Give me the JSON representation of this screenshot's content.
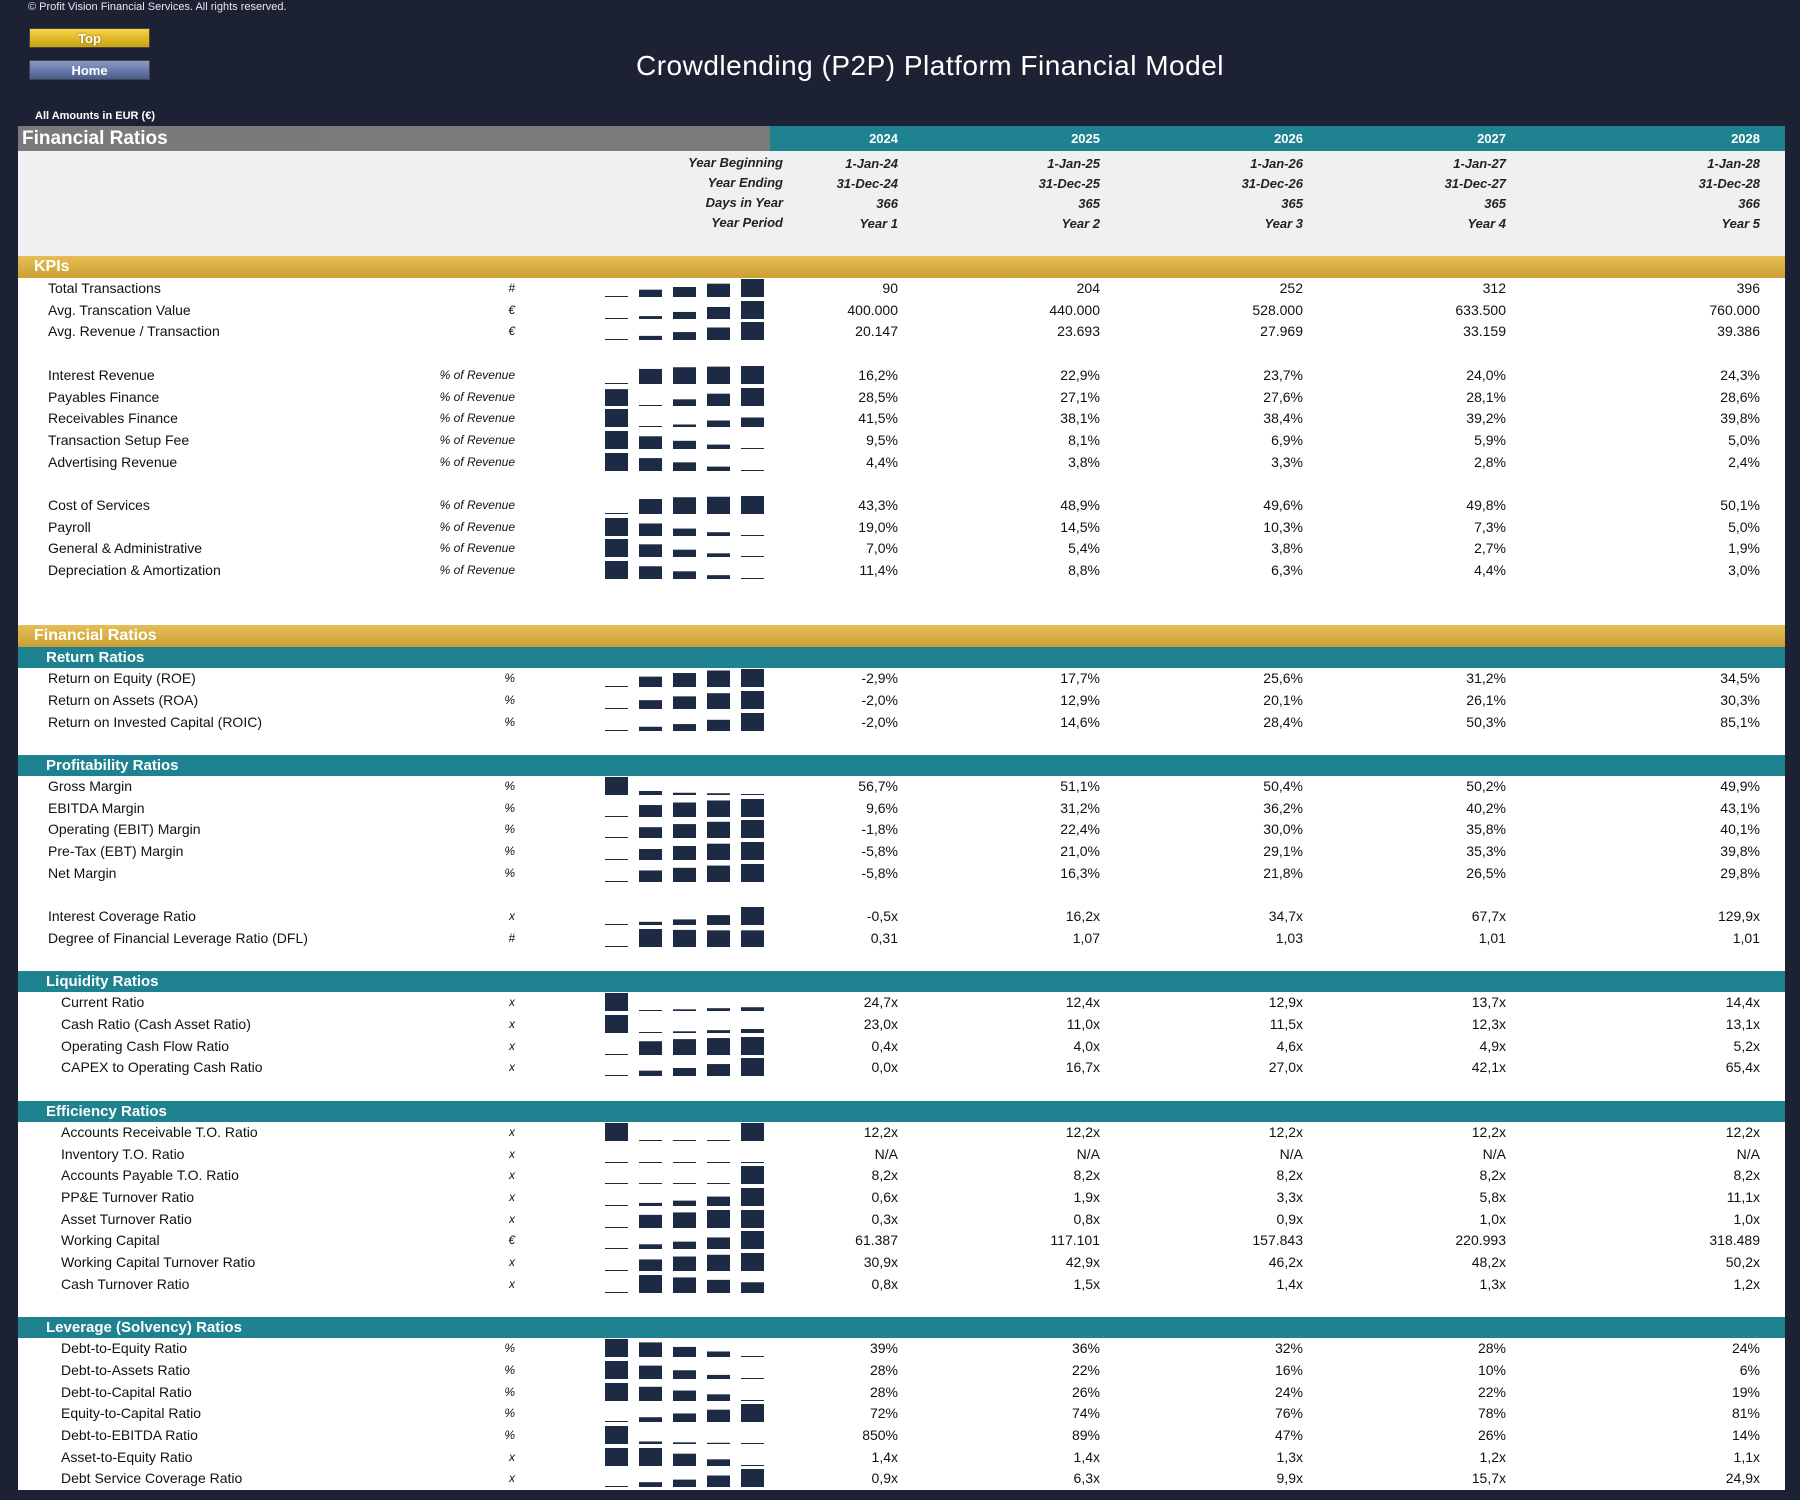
{
  "copyright": "© Profit Vision Financial Services. All rights reserved.",
  "nav": {
    "top_label": "Top",
    "home_label": "Home"
  },
  "title": "Crowdlending (P2P) Platform Financial Model",
  "amounts_note": "All Amounts in  EUR (€)",
  "sheet_title": "Financial Ratios",
  "years": [
    "2024",
    "2025",
    "2026",
    "2027",
    "2028"
  ],
  "date_header": {
    "labels": {
      "year_beginning": "Year Beginning",
      "year_ending": "Year Ending",
      "days_in_year": "Days in Year",
      "year_period": "Year Period"
    },
    "year_beginning": [
      "1-Jan-24",
      "1-Jan-25",
      "1-Jan-26",
      "1-Jan-27",
      "1-Jan-28"
    ],
    "year_ending": [
      "31-Dec-24",
      "31-Dec-25",
      "31-Dec-26",
      "31-Dec-27",
      "31-Dec-28"
    ],
    "days_in_year": [
      "366",
      "365",
      "365",
      "365",
      "366"
    ],
    "year_period": [
      "Year 1",
      "Year 2",
      "Year 3",
      "Year 4",
      "Year 5"
    ]
  },
  "colors": {
    "navy": "#1c2a44",
    "teal": "#1f8291",
    "gold": "#d4aa3c",
    "gray": "#7a7a7a"
  },
  "sections": [
    {
      "type": "gold",
      "title": "KPIs",
      "rows": [
        {
          "label": "Total Transactions",
          "unit": "#",
          "values": [
            "90",
            "204",
            "252",
            "312",
            "396"
          ],
          "spark": [
            90,
            204,
            252,
            312,
            396
          ]
        },
        {
          "label": "Avg. Transcation Value",
          "unit": "€",
          "values": [
            "400.000",
            "440.000",
            "528.000",
            "633.500",
            "760.000"
          ],
          "spark": [
            400,
            440,
            528,
            633.5,
            760
          ]
        },
        {
          "label": "Avg. Revenue / Transaction",
          "unit": "€",
          "values": [
            "20.147",
            "23.693",
            "27.969",
            "33.159",
            "39.386"
          ],
          "spark": [
            20.147,
            23.693,
            27.969,
            33.159,
            39.386
          ]
        },
        {
          "gap": true
        },
        {
          "label": "Interest Revenue",
          "unit": "% of Revenue",
          "values": [
            "16,2%",
            "22,9%",
            "23,7%",
            "24,0%",
            "24,3%"
          ],
          "spark": [
            16.2,
            22.9,
            23.7,
            24.0,
            24.3
          ]
        },
        {
          "label": "Payables Finance",
          "unit": "% of Revenue",
          "values": [
            "28,5%",
            "27,1%",
            "27,6%",
            "28,1%",
            "28,6%"
          ],
          "spark": [
            28.5,
            27.1,
            27.6,
            28.1,
            28.6
          ]
        },
        {
          "label": "Receivables Finance",
          "unit": "% of Revenue",
          "values": [
            "41,5%",
            "38,1%",
            "38,4%",
            "39,2%",
            "39,8%"
          ],
          "spark": [
            41.5,
            38.1,
            38.4,
            39.2,
            39.8
          ]
        },
        {
          "label": "Transaction Setup Fee",
          "unit": "% of Revenue",
          "values": [
            "9,5%",
            "8,1%",
            "6,9%",
            "5,9%",
            "5,0%"
          ],
          "spark": [
            9.5,
            8.1,
            6.9,
            5.9,
            5.0
          ]
        },
        {
          "label": "Advertising Revenue",
          "unit": "% of Revenue",
          "values": [
            "4,4%",
            "3,8%",
            "3,3%",
            "2,8%",
            "2,4%"
          ],
          "spark": [
            4.4,
            3.8,
            3.3,
            2.8,
            2.4
          ]
        },
        {
          "gap": true
        },
        {
          "label": "Cost of Services",
          "unit": "% of Revenue",
          "values": [
            "43,3%",
            "48,9%",
            "49,6%",
            "49,8%",
            "50,1%"
          ],
          "spark": [
            43.3,
            48.9,
            49.6,
            49.8,
            50.1
          ]
        },
        {
          "label": "Payroll",
          "unit": "% of Revenue",
          "values": [
            "19,0%",
            "14,5%",
            "10,3%",
            "7,3%",
            "5,0%"
          ],
          "spark": [
            19.0,
            14.5,
            10.3,
            7.3,
            5.0
          ]
        },
        {
          "label": "General & Administrative",
          "unit": "% of Revenue",
          "values": [
            "7,0%",
            "5,4%",
            "3,8%",
            "2,7%",
            "1,9%"
          ],
          "spark": [
            7.0,
            5.4,
            3.8,
            2.7,
            1.9
          ]
        },
        {
          "label": "Depreciation & Amortization",
          "unit": "% of Revenue",
          "values": [
            "11,4%",
            "8,8%",
            "6,3%",
            "4,4%",
            "3,0%"
          ],
          "spark": [
            11.4,
            8.8,
            6.3,
            4.4,
            3.0
          ]
        },
        {
          "gap": true
        },
        {
          "gap": true
        }
      ]
    },
    {
      "type": "gold",
      "title": "Financial Ratios",
      "rows": []
    },
    {
      "type": "teal",
      "title": "Return Ratios",
      "rows": [
        {
          "label": "Return on Equity (ROE)",
          "unit": "%",
          "values": [
            "-2,9%",
            "17,7%",
            "25,6%",
            "31,2%",
            "34,5%"
          ],
          "spark": [
            -2.9,
            17.7,
            25.6,
            31.2,
            34.5
          ]
        },
        {
          "label": "Return on Assets (ROA)",
          "unit": "%",
          "values": [
            "-2,0%",
            "12,9%",
            "20,1%",
            "26,1%",
            "30,3%"
          ],
          "spark": [
            -2.0,
            12.9,
            20.1,
            26.1,
            30.3
          ]
        },
        {
          "label": "Return on Invested Capital (ROIC)",
          "unit": "%",
          "values": [
            "-2,0%",
            "14,6%",
            "28,4%",
            "50,3%",
            "85,1%"
          ],
          "spark": [
            -2.0,
            14.6,
            28.4,
            50.3,
            85.1
          ]
        },
        {
          "gap": true
        }
      ]
    },
    {
      "type": "teal",
      "title": "Profitability Ratios",
      "rows": [
        {
          "label": "Gross Margin",
          "unit": "%",
          "values": [
            "56,7%",
            "51,1%",
            "50,4%",
            "50,2%",
            "49,9%"
          ],
          "spark": [
            56.7,
            51.1,
            50.4,
            50.2,
            49.9
          ]
        },
        {
          "label": "EBITDA Margin",
          "unit": "%",
          "values": [
            "9,6%",
            "31,2%",
            "36,2%",
            "40,2%",
            "43,1%"
          ],
          "spark": [
            9.6,
            31.2,
            36.2,
            40.2,
            43.1
          ]
        },
        {
          "label": "Operating (EBIT) Margin",
          "unit": "%",
          "values": [
            "-1,8%",
            "22,4%",
            "30,0%",
            "35,8%",
            "40,1%"
          ],
          "spark": [
            -1.8,
            22.4,
            30.0,
            35.8,
            40.1
          ]
        },
        {
          "label": "Pre-Tax (EBT) Margin",
          "unit": "%",
          "values": [
            "-5,8%",
            "21,0%",
            "29,1%",
            "35,3%",
            "39,8%"
          ],
          "spark": [
            -5.8,
            21.0,
            29.1,
            35.3,
            39.8
          ]
        },
        {
          "label": "Net Margin",
          "unit": "%",
          "values": [
            "-5,8%",
            "16,3%",
            "21,8%",
            "26,5%",
            "29,8%"
          ],
          "spark": [
            -5.8,
            16.3,
            21.8,
            26.5,
            29.8
          ]
        },
        {
          "gap": true
        },
        {
          "label": "Interest Coverage Ratio",
          "unit": "x",
          "values": [
            "-0,5x",
            "16,2x",
            "34,7x",
            "67,7x",
            "129,9x"
          ],
          "spark": [
            -0.5,
            16.2,
            34.7,
            67.7,
            129.9
          ]
        },
        {
          "label": "Degree of Financial Leverage Ratio (DFL)",
          "unit": "#",
          "values": [
            "0,31",
            "1,07",
            "1,03",
            "1,01",
            "1,01"
          ],
          "spark": [
            0.31,
            1.07,
            1.03,
            1.01,
            1.01
          ]
        },
        {
          "gap": true
        }
      ]
    },
    {
      "type": "teal",
      "title": "Liquidity Ratios",
      "rows": [
        {
          "label": "Current Ratio",
          "unit": "x",
          "indent": true,
          "values": [
            "24,7x",
            "12,4x",
            "12,9x",
            "13,7x",
            "14,4x"
          ],
          "spark": [
            24.7,
            12.4,
            12.9,
            13.7,
            14.4
          ]
        },
        {
          "label": "Cash Ratio (Cash Asset Ratio)",
          "unit": "x",
          "indent": true,
          "values": [
            "23,0x",
            "11,0x",
            "11,5x",
            "12,3x",
            "13,1x"
          ],
          "spark": [
            23.0,
            11.0,
            11.5,
            12.3,
            13.1
          ]
        },
        {
          "label": "Operating Cash Flow Ratio",
          "unit": "x",
          "indent": true,
          "values": [
            "0,4x",
            "4,0x",
            "4,6x",
            "4,9x",
            "5,2x"
          ],
          "spark": [
            0.4,
            4.0,
            4.6,
            4.9,
            5.2
          ]
        },
        {
          "label": "CAPEX to Operating Cash Ratio",
          "unit": "x",
          "indent": true,
          "values": [
            "0,0x",
            "16,7x",
            "27,0x",
            "42,1x",
            "65,4x"
          ],
          "spark": [
            0.0,
            16.7,
            27.0,
            42.1,
            65.4
          ]
        },
        {
          "gap": true
        }
      ]
    },
    {
      "type": "teal",
      "title": "Efficiency Ratios",
      "rows": [
        {
          "label": "Accounts Receivable T.O. Ratio",
          "unit": "x",
          "indent": true,
          "values": [
            "12,2x",
            "12,2x",
            "12,2x",
            "12,2x",
            "12,2x"
          ],
          "spark": [
            12.25,
            12.2,
            12.2,
            12.2,
            12.25
          ]
        },
        {
          "label": "Inventory T.O. Ratio",
          "unit": "x",
          "indent": true,
          "values": [
            "N/A",
            "N/A",
            "N/A",
            "N/A",
            "N/A"
          ],
          "spark": [
            0,
            0,
            0,
            0,
            0
          ]
        },
        {
          "label": "Accounts Payable T.O. Ratio",
          "unit": "x",
          "indent": true,
          "values": [
            "8,2x",
            "8,2x",
            "8,2x",
            "8,2x",
            "8,2x"
          ],
          "spark": [
            8.2,
            8.2,
            8.2,
            8.2,
            8.25
          ]
        },
        {
          "label": "PP&E Turnover Ratio",
          "unit": "x",
          "indent": true,
          "values": [
            "0,6x",
            "1,9x",
            "3,3x",
            "5,8x",
            "11,1x"
          ],
          "spark": [
            0.6,
            1.9,
            3.3,
            5.8,
            11.1
          ]
        },
        {
          "label": "Asset Turnover Ratio",
          "unit": "x",
          "indent": true,
          "values": [
            "0,3x",
            "0,8x",
            "0,9x",
            "1,0x",
            "1,0x"
          ],
          "spark": [
            0.3,
            0.8,
            0.9,
            1.0,
            1.0
          ]
        },
        {
          "label": "Working Capital",
          "unit": "€",
          "indent": true,
          "values": [
            "61.387",
            "117.101",
            "157.843",
            "220.993",
            "318.489"
          ],
          "spark": [
            61.387,
            117.101,
            157.843,
            220.993,
            318.489
          ]
        },
        {
          "label": "Working Capital Turnover Ratio",
          "unit": "x",
          "indent": true,
          "values": [
            "30,9x",
            "42,9x",
            "46,2x",
            "48,2x",
            "50,2x"
          ],
          "spark": [
            30.9,
            42.9,
            46.2,
            48.2,
            50.2
          ]
        },
        {
          "label": "Cash Turnover Ratio",
          "unit": "x",
          "indent": true,
          "values": [
            "0,8x",
            "1,5x",
            "1,4x",
            "1,3x",
            "1,2x"
          ],
          "spark": [
            0.8,
            1.5,
            1.4,
            1.3,
            1.2
          ]
        },
        {
          "gap": true
        }
      ]
    },
    {
      "type": "teal",
      "title": "Leverage (Solvency) Ratios",
      "rows": [
        {
          "label": "Debt-to-Equity Ratio",
          "unit": "%",
          "indent": true,
          "values": [
            "39%",
            "36%",
            "32%",
            "28%",
            "24%"
          ],
          "spark": [
            39,
            36,
            32,
            28,
            24
          ]
        },
        {
          "label": "Debt-to-Assets Ratio",
          "unit": "%",
          "indent": true,
          "values": [
            "28%",
            "22%",
            "16%",
            "10%",
            "6%"
          ],
          "spark": [
            28,
            22,
            16,
            10,
            6
          ]
        },
        {
          "label": "Debt-to-Capital Ratio",
          "unit": "%",
          "indent": true,
          "values": [
            "28%",
            "26%",
            "24%",
            "22%",
            "19%"
          ],
          "spark": [
            28,
            26,
            24,
            22,
            19
          ]
        },
        {
          "label": "Equity-to-Capital Ratio",
          "unit": "%",
          "indent": true,
          "values": [
            "72%",
            "74%",
            "76%",
            "78%",
            "81%"
          ],
          "spark": [
            72,
            74,
            76,
            78,
            81
          ]
        },
        {
          "label": "Debt-to-EBITDA Ratio",
          "unit": "%",
          "indent": true,
          "values": [
            "850%",
            "89%",
            "47%",
            "26%",
            "14%"
          ],
          "spark": [
            850,
            89,
            47,
            26,
            14
          ]
        },
        {
          "label": "Asset-to-Equity Ratio",
          "unit": "x",
          "indent": true,
          "values": [
            "1,4x",
            "1,4x",
            "1,3x",
            "1,2x",
            "1,1x"
          ],
          "spark": [
            1.4,
            1.4,
            1.3,
            1.2,
            1.1
          ]
        },
        {
          "label": "Debt Service Coverage Ratio",
          "unit": "x",
          "indent": true,
          "values": [
            "0,9x",
            "6,3x",
            "9,9x",
            "15,7x",
            "24,9x"
          ],
          "spark": [
            0.9,
            6.3,
            9.9,
            15.7,
            24.9
          ]
        }
      ]
    }
  ]
}
